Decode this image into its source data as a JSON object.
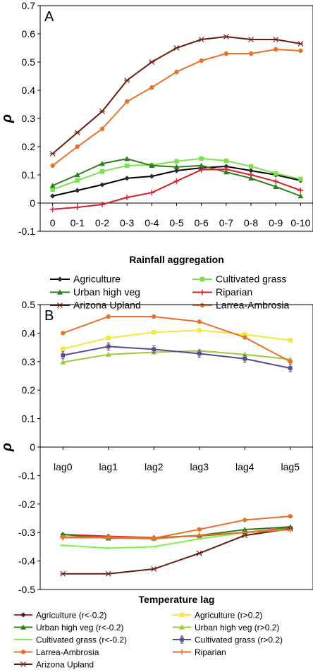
{
  "chart_data": [
    {
      "panel": "A",
      "type": "line",
      "ylabel": "ρ",
      "xlabel": "Rainfall aggregation",
      "categories": [
        "0",
        "0-1",
        "0-2",
        "0-3",
        "0-4",
        "0-5",
        "0-6",
        "0-7",
        "0-8",
        "0-9",
        "0-10"
      ],
      "ylim": [
        -0.1,
        0.7
      ],
      "yticks": [
        "-0.1",
        "0",
        "0.1",
        "0.2",
        "0.3",
        "0.4",
        "0.5",
        "0.6",
        "0.7"
      ],
      "series": [
        {
          "name": "Agriculture",
          "color": "#000000",
          "marker": "diamond",
          "values": [
            0.025,
            0.045,
            0.065,
            0.088,
            0.095,
            0.115,
            0.125,
            0.13,
            0.115,
            0.1,
            0.08
          ]
        },
        {
          "name": "Cultivated grass",
          "color": "#7CE24C",
          "marker": "square",
          "values": [
            0.048,
            0.08,
            0.112,
            0.133,
            0.135,
            0.148,
            0.158,
            0.15,
            0.13,
            0.105,
            0.085
          ]
        },
        {
          "name": "Urban high veg",
          "color": "#2E7D1E",
          "marker": "triangle",
          "values": [
            0.062,
            0.1,
            0.14,
            0.157,
            0.133,
            0.128,
            0.133,
            0.11,
            0.088,
            0.058,
            0.025
          ]
        },
        {
          "name": "Riparian",
          "color": "#D81E2A",
          "marker": "plus",
          "values": [
            -0.022,
            -0.015,
            -0.005,
            0.02,
            0.037,
            0.078,
            0.118,
            0.12,
            0.1,
            0.077,
            0.045
          ]
        },
        {
          "name": "Arizona Upland",
          "color": "#6B1A10",
          "marker": "star",
          "values": [
            0.175,
            0.25,
            0.325,
            0.435,
            0.5,
            0.55,
            0.58,
            0.59,
            0.58,
            0.58,
            0.565
          ]
        },
        {
          "name": "Larrea-Ambrosia",
          "color": "#E8722A",
          "marker": "circle",
          "values": [
            0.133,
            0.2,
            0.263,
            0.36,
            0.41,
            0.465,
            0.505,
            0.53,
            0.53,
            0.545,
            0.54
          ]
        }
      ],
      "legend": [
        [
          "Agriculture",
          "Cultivated grass"
        ],
        [
          "Urban high veg",
          "Riparian"
        ],
        [
          "Arizona Upland",
          "Larrea-Ambrosia"
        ]
      ]
    },
    {
      "panel": "B",
      "type": "line",
      "ylabel": "ρ",
      "xlabel": "Temperature lag",
      "categories": [
        "lag0",
        "lag1",
        "lag2",
        "lag3",
        "lag4",
        "lag5"
      ],
      "ylim": [
        -0.5,
        0.5
      ],
      "yticks": [
        "-0.5",
        "-0.4",
        "-0.3",
        "-0.2",
        "-0.1",
        "0",
        "0.1",
        "0.2",
        "0.3",
        "0.4",
        "0.5"
      ],
      "series": [
        {
          "name": "Agriculture (r<-0.2)",
          "color": "#D81E2A",
          "marker": "diamond",
          "values": [
            -0.307,
            -0.313,
            -0.318,
            -0.312,
            -0.3,
            -0.283
          ]
        },
        {
          "name": "Agriculture (r>0.2)",
          "color": "#F5E83A",
          "marker": "square",
          "values": [
            0.345,
            0.383,
            0.403,
            0.41,
            0.395,
            0.375
          ]
        },
        {
          "name": "Urban high veg (r<-0.2)",
          "color": "#2E7D1E",
          "marker": "triangle",
          "values": [
            -0.307,
            -0.32,
            -0.32,
            -0.31,
            -0.29,
            -0.28
          ]
        },
        {
          "name": "Urban high veg (r>0.2)",
          "color": "#9BCB3C",
          "marker": "triangle",
          "values": [
            0.298,
            0.325,
            0.333,
            0.338,
            0.325,
            0.308
          ]
        },
        {
          "name": "Cultivated grass (r<-0.2)",
          "color": "#7CF04C",
          "marker": "dash",
          "values": [
            -0.345,
            -0.355,
            -0.35,
            -0.322,
            -0.3,
            -0.287
          ]
        },
        {
          "name": "Cultivated grass (r>0.2)",
          "color": "#5B4A8E",
          "marker": "errbar",
          "values": [
            0.322,
            0.353,
            0.343,
            0.328,
            0.31,
            0.277
          ]
        },
        {
          "name": "Larrea-Ambrosia",
          "color": "#E8722A",
          "marker": "circle",
          "values": [
            -0.316,
            -0.316,
            -0.32,
            -0.289,
            -0.256,
            -0.243
          ]
        },
        {
          "name": "Larrea-Ambrosia (r>0.2)",
          "color": "#E8722A",
          "marker": "circle",
          "values": [
            0.4,
            0.458,
            0.458,
            0.44,
            0.385,
            0.3
          ]
        },
        {
          "name": "Arizona Upland",
          "color": "#6B1A10",
          "marker": "star",
          "values": [
            -0.445,
            -0.445,
            -0.428,
            -0.373,
            -0.31,
            -0.287
          ]
        },
        {
          "name": "Riparian",
          "color": "#E8722A",
          "marker": "plus",
          "values": [
            -0.318,
            -0.318,
            -0.322,
            -0.31,
            -0.3,
            -0.29
          ]
        }
      ],
      "legend": [
        [
          "Agriculture (r<-0.2)",
          "Agriculture (r>0.2)"
        ],
        [
          "Urban high veg (r<-0.2)",
          "Urban high veg (r>0.2)"
        ],
        [
          "Cultivated grass (r<-0.2)",
          "Cultivated grass (r>0.2)"
        ],
        [
          "Larrea-Ambrosia",
          "Riparian"
        ],
        [
          "Arizona Upland",
          ""
        ]
      ]
    }
  ]
}
